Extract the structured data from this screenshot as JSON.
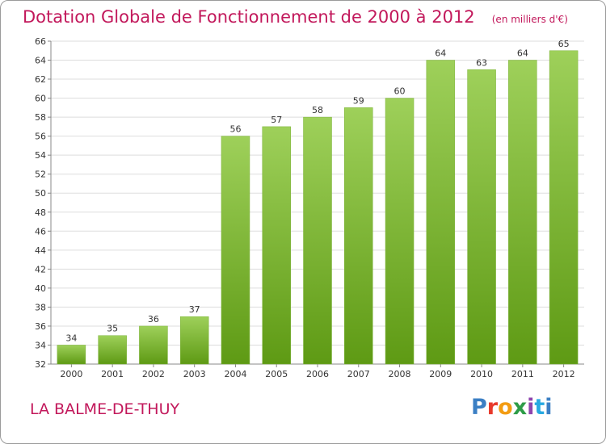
{
  "title": "Dotation Globale de Fonctionnement de 2000 à 2012",
  "unit": "(en milliers d'€)",
  "commune": "LA BALME-DE-THUY",
  "logo": [
    "P",
    "r",
    "o",
    "x",
    "i",
    "t",
    "i"
  ],
  "colors": {
    "title": "#c2185b",
    "bar_top": "#9ed05a",
    "bar_bottom": "#5e9a14",
    "grid": "#dddddd",
    "axis": "#888888"
  },
  "chart_data": {
    "type": "bar",
    "categories": [
      "2000",
      "2001",
      "2002",
      "2003",
      "2004",
      "2005",
      "2006",
      "2007",
      "2008",
      "2009",
      "2010",
      "2011",
      "2012"
    ],
    "values": [
      34,
      35,
      36,
      37,
      56,
      57,
      58,
      59,
      60,
      64,
      63,
      64,
      65
    ],
    "ylim": [
      32,
      66
    ],
    "yticks": [
      32,
      34,
      36,
      38,
      40,
      42,
      44,
      46,
      48,
      50,
      52,
      54,
      56,
      58,
      60,
      62,
      64,
      66
    ],
    "grid": true,
    "xlabel": "",
    "ylabel": ""
  }
}
